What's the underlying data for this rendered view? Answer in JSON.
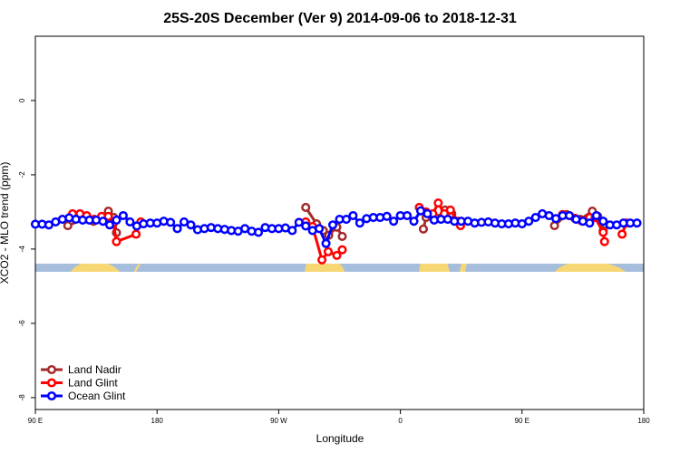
{
  "chart_data": {
    "type": "line",
    "title": "25S-20S December (Ver 9)   2014-09-06 to 2018-12-31",
    "x_label": "Longitude",
    "y_label": "XCO2 - MLO trend (ppm)",
    "xlim": [
      90,
      540
    ],
    "ylim": [
      -8.32,
      1.73
    ],
    "xticks": [
      {
        "value": 90,
        "label": "90 E"
      },
      180,
      {
        "value": 270,
        "label": "90 W"
      },
      {
        "value": 360,
        "label": "0"
      },
      {
        "value": 450,
        "label": "90 E"
      },
      {
        "value": 540,
        "label": "180"
      }
    ],
    "yticks": [
      0,
      -2,
      -4,
      -6,
      -8
    ],
    "legend": "bottom-left",
    "series": [
      {
        "name": "Land Nadir",
        "color": "#a52a2a",
        "x": [
          114,
          125,
          133,
          141,
          144,
          148,
          150,
          200,
          290,
          298,
          303,
          307,
          313,
          317,
          350,
          377,
          379,
          387,
          393,
          398,
          440,
          474,
          483,
          493,
          502,
          506,
          510
        ],
        "values": [
          -3.37,
          -3.2,
          -3.25,
          -3.15,
          -2.98,
          -3.15,
          -3.56,
          null,
          -2.88,
          -3.32,
          -3.5,
          -3.63,
          -3.41,
          -3.66,
          null,
          -3.46,
          -3.15,
          -3.17,
          -2.95,
          -3.05,
          null,
          -3.37,
          -3.07,
          -3.2,
          -2.98,
          -3.12,
          -3.5
        ]
      },
      {
        "name": "Land Glint",
        "color": "#ff0000",
        "x": [
          117.5,
          123,
          128,
          133.6,
          139,
          144,
          147.7,
          150,
          164.5,
          168,
          200,
          290,
          295,
          302,
          306.6,
          313,
          317,
          350,
          374,
          379,
          384,
          388,
          392.5,
          397,
          402.6,
          404.5,
          440,
          480,
          485,
          489,
          494,
          500,
          504,
          510,
          511,
          518,
          524,
          527
        ],
        "values": [
          -3.05,
          -3.05,
          -3.1,
          -3.2,
          -3.12,
          -3.12,
          -3.3,
          -3.8,
          -3.6,
          -3.27,
          null,
          -3.27,
          -3.39,
          -4.29,
          -4.07,
          -4.17,
          -4.02,
          null,
          -2.88,
          -3.0,
          -3.05,
          -2.76,
          -3.05,
          -2.95,
          -3.25,
          -3.37,
          null,
          -3.07,
          -3.1,
          -3.17,
          -3.24,
          -3.15,
          -3.15,
          -3.55,
          -3.8,
          null,
          -3.6,
          -3.3
        ]
      },
      {
        "name": "Ocean Glint",
        "color": "#0000ff",
        "x": [
          90,
          95,
          100,
          105,
          110,
          115,
          120,
          125,
          130,
          135,
          140,
          145,
          150,
          155,
          160,
          165,
          170,
          175,
          180,
          185,
          190,
          195,
          200,
          205,
          210,
          215,
          220,
          225,
          230,
          235,
          240,
          245,
          250,
          255,
          260,
          265,
          270,
          275,
          280,
          285,
          290,
          295,
          300,
          305,
          310,
          315,
          320,
          325,
          330,
          335,
          340,
          345,
          350,
          355,
          360,
          365,
          370,
          375,
          380,
          385,
          390,
          395,
          400,
          405,
          410,
          415,
          420,
          425,
          430,
          435,
          440,
          445,
          450,
          455,
          460,
          465,
          470,
          475,
          480,
          485,
          490,
          495,
          500,
          505,
          510,
          515,
          520,
          525,
          530,
          535
        ],
        "values": [
          -3.33,
          -3.33,
          -3.35,
          -3.27,
          -3.2,
          -3.16,
          -3.2,
          -3.22,
          -3.22,
          -3.22,
          -3.25,
          -3.35,
          -3.22,
          -3.1,
          -3.27,
          -3.38,
          -3.32,
          -3.3,
          -3.3,
          -3.25,
          -3.28,
          -3.45,
          -3.27,
          -3.35,
          -3.48,
          -3.45,
          -3.42,
          -3.45,
          -3.47,
          -3.5,
          -3.52,
          -3.45,
          -3.52,
          -3.55,
          -3.42,
          -3.45,
          -3.45,
          -3.43,
          -3.5,
          -3.28,
          -3.38,
          -3.5,
          -3.45,
          -3.85,
          -3.35,
          -3.2,
          -3.2,
          -3.1,
          -3.3,
          -3.18,
          -3.15,
          -3.15,
          -3.12,
          -3.25,
          -3.1,
          -3.1,
          -3.25,
          -2.97,
          -3.05,
          -3.22,
          -3.2,
          -3.2,
          -3.25,
          -3.25,
          -3.25,
          -3.3,
          -3.28,
          -3.27,
          -3.3,
          -3.32,
          -3.32,
          -3.3,
          -3.32,
          -3.25,
          -3.15,
          -3.05,
          -3.1,
          -3.18,
          -3.1,
          -3.1,
          -3.2,
          -3.25,
          -3.3,
          -3.1,
          -3.25,
          -3.35,
          -3.35,
          -3.3,
          -3.3,
          -3.3
        ]
      }
    ]
  }
}
